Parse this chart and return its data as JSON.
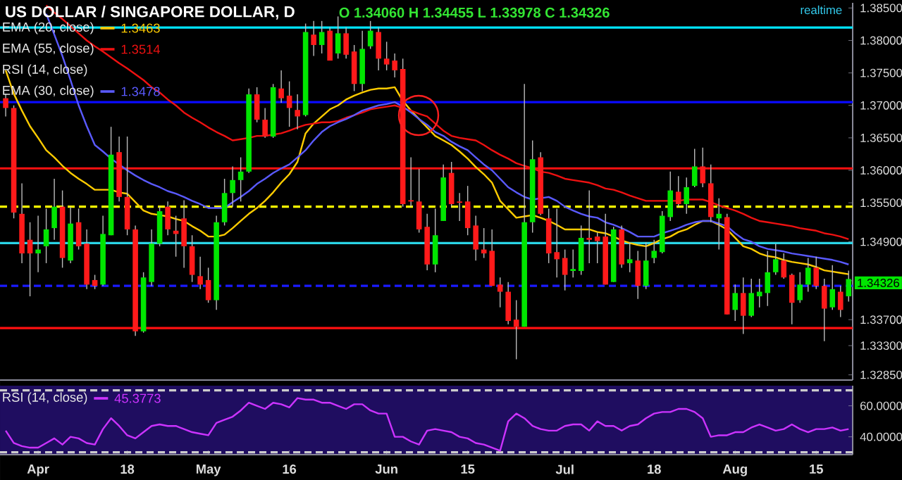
{
  "chart_data": [
    {
      "type": "candlestick",
      "title": "US DOLLAR / SINGAPORE DOLLAR, D",
      "subtitle": "O 1.34060 H 1.34455 L 1.33978 C 1.34326",
      "categories": [
        null,
        null,
        null,
        null,
        null,
        null,
        null,
        null,
        null,
        null,
        null,
        null,
        null,
        null,
        null,
        null,
        null,
        null,
        null,
        null,
        null,
        null,
        null,
        null,
        null,
        null,
        null,
        null,
        null,
        null,
        null,
        null,
        null,
        null,
        null,
        null,
        null,
        null,
        null,
        null,
        null,
        null,
        null,
        null,
        null,
        null,
        null,
        null,
        null,
        null,
        null,
        null,
        null,
        null,
        null,
        null,
        null,
        null,
        null,
        null,
        null,
        null,
        null,
        null,
        null,
        null,
        null,
        null,
        null,
        null,
        null,
        null,
        null,
        null,
        null,
        null,
        null,
        null,
        null,
        null,
        null,
        null,
        null,
        null,
        null,
        null,
        null,
        null,
        null,
        null,
        null,
        null,
        null,
        null,
        null,
        null,
        null,
        null,
        null,
        null,
        null,
        null,
        null,
        null,
        null
      ],
      "ohlc": [
        [
          1.3711,
          1.3718,
          1.3683,
          1.3696
        ],
        [
          1.3696,
          1.37,
          1.3526,
          1.3535
        ],
        [
          1.3533,
          1.358,
          1.3457,
          1.3472
        ],
        [
          1.3493,
          1.352,
          1.3406,
          1.3472
        ],
        [
          1.3472,
          1.353,
          1.3443,
          1.3478
        ],
        [
          1.3483,
          1.3541,
          1.3457,
          1.3509
        ],
        [
          1.3511,
          1.3587,
          1.3493,
          1.3544
        ],
        [
          1.3544,
          1.3569,
          1.345,
          1.3465
        ],
        [
          1.3461,
          1.3544,
          1.3457,
          1.3518
        ],
        [
          1.352,
          1.3541,
          1.3478,
          1.3483
        ],
        [
          1.3487,
          1.3509,
          1.3417,
          1.3424
        ],
        [
          1.3431,
          1.3439,
          1.3417,
          1.3422
        ],
        [
          1.3424,
          1.353,
          1.3422,
          1.3502
        ],
        [
          1.35,
          1.3667,
          1.35,
          1.3624
        ],
        [
          1.3628,
          1.3652,
          1.3552,
          1.3559
        ],
        [
          1.3559,
          1.3652,
          1.35,
          1.3509
        ],
        [
          1.3509,
          1.3515,
          1.3345,
          1.3352
        ],
        [
          1.3352,
          1.3443,
          1.335,
          1.3435
        ],
        [
          1.3428,
          1.3509,
          1.3422,
          1.3487
        ],
        [
          1.3487,
          1.3544,
          1.3483,
          1.3537
        ],
        [
          1.3544,
          1.3552,
          1.35,
          1.3509
        ],
        [
          1.3507,
          1.353,
          1.3467,
          1.3502
        ],
        [
          1.3526,
          1.3554,
          1.345,
          1.3483
        ],
        [
          1.3483,
          1.35,
          1.3428,
          1.3439
        ],
        [
          1.3437,
          1.3467,
          1.3417,
          1.3424
        ],
        [
          1.3431,
          1.345,
          1.3396,
          1.34
        ],
        [
          1.34,
          1.353,
          1.3385,
          1.352
        ],
        [
          1.352,
          1.3587,
          1.3515,
          1.3565
        ],
        [
          1.3565,
          1.3606,
          1.3544,
          1.3585
        ],
        [
          1.3585,
          1.362,
          1.3552,
          1.3598
        ],
        [
          1.3598,
          1.3726,
          1.3596,
          1.3717
        ],
        [
          1.3717,
          1.3728,
          1.3674,
          1.3678
        ],
        [
          1.3678,
          1.3696,
          1.365,
          1.3652
        ],
        [
          1.3652,
          1.3733,
          1.365,
          1.3728
        ],
        [
          1.3726,
          1.3754,
          1.3704,
          1.3711
        ],
        [
          1.3715,
          1.3737,
          1.3667,
          1.3696
        ],
        [
          1.3693,
          1.3717,
          1.3663,
          1.3683
        ],
        [
          1.3685,
          1.3826,
          1.3683,
          1.3813
        ],
        [
          1.3809,
          1.383,
          1.3776,
          1.3793
        ],
        [
          1.3793,
          1.383,
          1.378,
          1.3813
        ],
        [
          1.3815,
          1.382,
          1.3769,
          1.3769
        ],
        [
          1.378,
          1.3837,
          1.3772,
          1.3811
        ],
        [
          1.3811,
          1.382,
          1.3772,
          1.3778
        ],
        [
          1.3783,
          1.3793,
          1.3722,
          1.3733
        ],
        [
          1.3733,
          1.3815,
          1.3722,
          1.3787
        ],
        [
          1.3791,
          1.383,
          1.3787,
          1.3815
        ],
        [
          1.3813,
          1.382,
          1.3754,
          1.3772
        ],
        [
          1.3772,
          1.3798,
          1.3754,
          1.3763
        ],
        [
          1.3769,
          1.378,
          1.3743,
          1.3754
        ],
        [
          1.3756,
          1.3772,
          1.3544,
          1.3548
        ],
        [
          1.3554,
          1.362,
          1.3544,
          1.3552
        ],
        [
          1.3552,
          1.3602,
          1.3504,
          1.3509
        ],
        [
          1.3513,
          1.3533,
          1.3446,
          1.3455
        ],
        [
          1.3455,
          1.3541,
          1.3443,
          1.35
        ],
        [
          1.3522,
          1.3609,
          1.3522,
          1.3589
        ],
        [
          1.3596,
          1.3613,
          1.3544,
          1.3548
        ],
        [
          1.3552,
          1.3565,
          1.3522,
          1.355
        ],
        [
          1.3552,
          1.3576,
          1.35,
          1.3511
        ],
        [
          1.3515,
          1.353,
          1.3461,
          1.3478
        ],
        [
          1.3478,
          1.3511,
          1.3465,
          1.3472
        ],
        [
          1.3476,
          1.3509,
          1.3422,
          1.3422
        ],
        [
          1.3424,
          1.3435,
          1.3389,
          1.3413
        ],
        [
          1.3413,
          1.3428,
          1.3363,
          1.3368
        ],
        [
          1.337,
          1.34,
          1.3309,
          1.3359
        ],
        [
          1.3359,
          1.3733,
          1.3359,
          1.352
        ],
        [
          1.352,
          1.3646,
          1.3504,
          1.3617
        ],
        [
          1.362,
          1.3628,
          1.3531,
          1.3533
        ],
        [
          1.3526,
          1.3541,
          1.3457,
          1.3472
        ],
        [
          1.3474,
          1.3541,
          1.3435,
          1.3463
        ],
        [
          1.3465,
          1.3478,
          1.3415,
          1.3439
        ],
        [
          1.3445,
          1.3478,
          1.3435,
          1.3448
        ],
        [
          1.3445,
          1.3515,
          1.3439,
          1.3496
        ],
        [
          1.3496,
          1.3569,
          1.3457,
          1.3493
        ],
        [
          1.3498,
          1.3504,
          1.3457,
          1.3491
        ],
        [
          1.3498,
          1.3533,
          1.3424,
          1.3424
        ],
        [
          1.3428,
          1.3513,
          1.3428,
          1.3509
        ],
        [
          1.3509,
          1.3515,
          1.345,
          1.3455
        ],
        [
          1.3457,
          1.3489,
          1.3443,
          1.3463
        ],
        [
          1.3461,
          1.3476,
          1.3402,
          1.3422
        ],
        [
          1.3422,
          1.3489,
          1.3417,
          1.3461
        ],
        [
          1.3465,
          1.3493,
          1.3457,
          1.3476
        ],
        [
          1.3474,
          1.3537,
          1.3472,
          1.353
        ],
        [
          1.3528,
          1.3598,
          1.3522,
          1.3569
        ],
        [
          1.3567,
          1.3591,
          1.3544,
          1.3548
        ],
        [
          1.3548,
          1.3589,
          1.3533,
          1.3574
        ],
        [
          1.3576,
          1.3633,
          1.3574,
          1.3606
        ],
        [
          1.3606,
          1.3635,
          1.3574,
          1.358
        ],
        [
          1.358,
          1.3609,
          1.352,
          1.3528
        ],
        [
          1.3526,
          1.3557,
          1.3478,
          1.3533
        ],
        [
          1.3528,
          1.3533,
          1.3378,
          1.3378
        ],
        [
          1.3385,
          1.3424,
          1.3368,
          1.3411
        ],
        [
          1.3411,
          1.3435,
          1.3348,
          1.3376
        ],
        [
          1.3376,
          1.3433,
          1.3374,
          1.3411
        ],
        [
          1.3406,
          1.3433,
          1.3389,
          1.3413
        ],
        [
          1.3411,
          1.3476,
          1.3391,
          1.3443
        ],
        [
          1.3443,
          1.3487,
          1.3439,
          1.3463
        ],
        [
          1.3461,
          1.3472,
          1.3433,
          1.3435
        ],
        [
          1.3439,
          1.3441,
          1.3363,
          1.3396
        ],
        [
          1.34,
          1.3443,
          1.3396,
          1.3424
        ],
        [
          1.3424,
          1.3465,
          1.3413,
          1.345
        ],
        [
          1.345,
          1.3467,
          1.3417,
          1.3422
        ],
        [
          1.3422,
          1.3433,
          1.3337,
          1.3387
        ],
        [
          1.3389,
          1.3454,
          1.3385,
          1.3417
        ],
        [
          1.3413,
          1.3422,
          1.3374,
          1.3385
        ],
        [
          1.3406,
          1.34455,
          1.33978,
          1.34326
        ]
      ],
      "series": [
        {
          "type": "line",
          "name": "EMA (20, close)",
          "color": "#ffcc00",
          "values": [
            1.3754,
            1.3718,
            1.3692,
            1.3668,
            1.365,
            1.3631,
            1.362,
            1.3607,
            1.3596,
            1.3587,
            1.3579,
            1.357,
            1.357,
            1.357,
            1.3566,
            1.3564,
            1.3551,
            1.3538,
            1.3533,
            1.3531,
            1.3529,
            1.3525,
            1.3522,
            1.3514,
            1.3507,
            1.3498,
            1.3498,
            1.3501,
            1.3511,
            1.3522,
            1.3533,
            1.3542,
            1.3553,
            1.3566,
            1.3581,
            1.3594,
            1.3613,
            1.3657,
            1.3672,
            1.3683,
            1.3694,
            1.37,
            1.3709,
            1.3715,
            1.372,
            1.3724,
            1.3726,
            1.3726,
            1.3728,
            1.3707,
            1.3692,
            1.3679,
            1.3666,
            1.3653,
            1.3646,
            1.3639,
            1.3629,
            1.3618,
            1.3605,
            1.3594,
            1.3581,
            1.3553,
            1.354,
            1.3527,
            1.3529,
            1.3531,
            1.3527,
            1.3522,
            1.3516,
            1.3509,
            1.3509,
            1.3509,
            1.3509,
            1.3505,
            1.3503,
            1.3498,
            1.3492,
            1.3488,
            1.3485,
            1.3483,
            1.3488,
            1.3494,
            1.3498,
            1.3505,
            1.3509,
            1.3516,
            1.3522,
            1.3522,
            1.3516,
            1.3509,
            1.3496,
            1.3483,
            1.3479,
            1.3472,
            1.3468,
            1.3466,
            1.3462,
            1.3459,
            1.3457,
            1.3455,
            1.3451,
            1.3446,
            1.3444,
            1.3442,
            1.344
          ]
        },
        {
          "type": "line",
          "name": "EMA (55, close)",
          "color": "#ee1111",
          "values": [
            null,
            null,
            null,
            null,
            null,
            1.3854,
            1.3843,
            1.3833,
            1.3822,
            1.3811,
            1.38,
            1.3791,
            1.3783,
            1.3774,
            1.3765,
            1.3757,
            1.3748,
            1.3739,
            1.3728,
            1.372,
            1.3709,
            1.37,
            1.3689,
            1.3681,
            1.3674,
            1.3666,
            1.3659,
            1.3653,
            1.3646,
            1.3648,
            1.365,
            1.3653,
            1.3653,
            1.3655,
            1.3657,
            1.3661,
            1.3666,
            1.367,
            1.3672,
            1.3674,
            1.3674,
            1.3676,
            1.3681,
            1.3685,
            1.3689,
            1.3694,
            1.3696,
            1.3698,
            1.37,
            1.3696,
            1.3692,
            1.3687,
            1.3683,
            1.3672,
            1.3661,
            1.3653,
            1.365,
            1.3648,
            1.3646,
            1.3639,
            1.3631,
            1.3624,
            1.3618,
            1.3611,
            1.3607,
            1.3603,
            1.3598,
            1.3596,
            1.3592,
            1.3587,
            1.3585,
            1.3583,
            1.3581,
            1.3577,
            1.3572,
            1.357,
            1.3566,
            1.3561,
            1.3557,
            1.3553,
            1.3553,
            1.3553,
            1.3553,
            1.3553,
            1.3555,
            1.3555,
            1.3555,
            1.3551,
            1.3546,
            1.3542,
            1.3538,
            1.3533,
            1.3527,
            1.3522,
            1.352,
            1.3518,
            1.3516,
            1.3514,
            1.3511,
            1.3509,
            1.3507,
            1.3503,
            1.3501,
            1.3498,
            1.3494
          ]
        },
        {
          "type": "line",
          "name": "EMA (30, close)",
          "color": "#5a5aff",
          "values": [
            null,
            null,
            null,
            null,
            null,
            1.3841,
            1.3809,
            1.3776,
            1.3739,
            1.37,
            1.3668,
            1.3639,
            1.3629,
            1.3618,
            1.3609,
            1.36,
            1.3592,
            1.3585,
            1.3579,
            1.3574,
            1.3568,
            1.3564,
            1.3559,
            1.3553,
            1.3548,
            1.3542,
            1.3542,
            1.3542,
            1.3551,
            1.3559,
            1.3568,
            1.3579,
            1.3587,
            1.3596,
            1.3603,
            1.3609,
            1.362,
            1.3631,
            1.3646,
            1.3659,
            1.3668,
            1.3674,
            1.3679,
            1.3685,
            1.3692,
            1.3696,
            1.37,
            1.3702,
            1.3705,
            1.3698,
            1.3689,
            1.3679,
            1.367,
            1.3659,
            1.3653,
            1.3644,
            1.3637,
            1.3631,
            1.362,
            1.3609,
            1.36,
            1.3587,
            1.3574,
            1.3566,
            1.3559,
            1.3555,
            1.3557,
            1.3559,
            1.3553,
            1.3544,
            1.3538,
            1.3533,
            1.3529,
            1.3527,
            1.352,
            1.3516,
            1.3511,
            1.3505,
            1.3498,
            1.3498,
            1.3498,
            1.3503,
            1.3507,
            1.3511,
            1.3516,
            1.352,
            1.3522,
            1.3522,
            1.3518,
            1.3514,
            1.3503,
            1.3494,
            1.349,
            1.3483,
            1.3479,
            1.3477,
            1.3475,
            1.3472,
            1.347,
            1.3468,
            1.3466,
            1.3464,
            1.3462,
            1.3459,
            1.3455
          ]
        }
      ],
      "ylim": [
        1.3277,
        1.3858
      ],
      "yticks": [
        {
          "value": 1.385,
          "label": "1.38500"
        },
        {
          "value": 1.38,
          "label": "1.38000"
        },
        {
          "value": 1.375,
          "label": "1.37500"
        },
        {
          "value": 1.37,
          "label": "1.37000"
        },
        {
          "value": 1.365,
          "label": "1.36500"
        },
        {
          "value": 1.36,
          "label": "1.36000"
        },
        {
          "value": 1.355,
          "label": "1.35500"
        },
        {
          "value": 1.349,
          "label": "1.34900"
        },
        {
          "value": 1.343,
          "label": null
        },
        {
          "value": 1.337,
          "label": "1.33700"
        },
        {
          "value": 1.333,
          "label": "1.33300"
        },
        {
          "value": 1.3285,
          "label": "1.32850"
        }
      ],
      "ref_lines": [
        {
          "axis": "y",
          "value": 1.382,
          "color": "#00e5ff"
        },
        {
          "axis": "y",
          "value": 1.3705,
          "color": "#0a0aff"
        },
        {
          "axis": "y",
          "value": 1.3603,
          "color": "#ff1010"
        },
        {
          "axis": "y",
          "value": 1.3544,
          "color": "#ffff00",
          "line_style": "dashed"
        },
        {
          "axis": "y",
          "value": 1.3488,
          "color": "#2ad4e6"
        },
        {
          "axis": "y",
          "value": 1.3422,
          "color": "#1a1aff",
          "line_style": "dashed"
        },
        {
          "axis": "y",
          "value": 1.3357,
          "color": "#ff1010"
        }
      ],
      "annotations": [
        "realtime",
        "1.3463",
        "1.3514",
        "RSI (14, close)",
        "1.3478",
        "1.34326"
      ],
      "legend": "top left",
      "tick_labels": "y"
    },
    {
      "type": "line",
      "categories": [
        null,
        null,
        null,
        null,
        "Apr",
        null,
        null,
        null,
        null,
        null,
        null,
        null,
        null,
        null,
        null,
        "18",
        null,
        null,
        null,
        null,
        null,
        null,
        null,
        null,
        null,
        "May",
        null,
        null,
        null,
        null,
        null,
        null,
        null,
        null,
        null,
        "16",
        null,
        null,
        null,
        null,
        null,
        null,
        null,
        null,
        null,
        null,
        null,
        "Jun",
        null,
        null,
        null,
        null,
        null,
        null,
        null,
        null,
        null,
        "15",
        null,
        null,
        null,
        null,
        null,
        null,
        null,
        null,
        null,
        null,
        null,
        "Jul",
        null,
        null,
        null,
        null,
        null,
        null,
        null,
        null,
        null,
        null,
        "18",
        null,
        null,
        null,
        null,
        null,
        null,
        null,
        null,
        null,
        "Aug",
        null,
        null,
        null,
        null,
        null,
        null,
        null,
        null,
        null,
        "15",
        null,
        null,
        null,
        null
      ],
      "series": [
        {
          "name": "RSI (14, close)",
          "color": "#cc33ff",
          "values": [
            44,
            36,
            34,
            33,
            33,
            36,
            39,
            35,
            40,
            39,
            36,
            35,
            45,
            52,
            47,
            41,
            39,
            43,
            47,
            48,
            47,
            47,
            45,
            43,
            42,
            41,
            49,
            51,
            53,
            57,
            62,
            60,
            58,
            62,
            61,
            59,
            65,
            64,
            64,
            62,
            62,
            60,
            58,
            61,
            61,
            57,
            55,
            55,
            40,
            40,
            37,
            35,
            44,
            45,
            44,
            43,
            40,
            39,
            36,
            35,
            33,
            31,
            50,
            55,
            52,
            47,
            45,
            44,
            44,
            47,
            48,
            48,
            44,
            50,
            47,
            47,
            44,
            47,
            48,
            52,
            55,
            56,
            56,
            58,
            58,
            56,
            52,
            40,
            41,
            41,
            43,
            43,
            46,
            48,
            46,
            44,
            45,
            48,
            45,
            43,
            45,
            45,
            46,
            44,
            45
          ]
        }
      ],
      "ylim": [
        28.5,
        73
      ],
      "yticks": [
        {
          "value": 40,
          "label": "40.0000"
        },
        {
          "value": 60,
          "label": "60.0000"
        }
      ],
      "ref_lines": [
        {
          "axis": "y",
          "value": 70,
          "color": "#cccccc",
          "line_style": "dashed"
        },
        {
          "axis": "y",
          "value": 30,
          "color": "#cccccc",
          "line_style": "dashed"
        }
      ],
      "annotations": [
        "45.3773"
      ],
      "legend": "top left"
    }
  ]
}
